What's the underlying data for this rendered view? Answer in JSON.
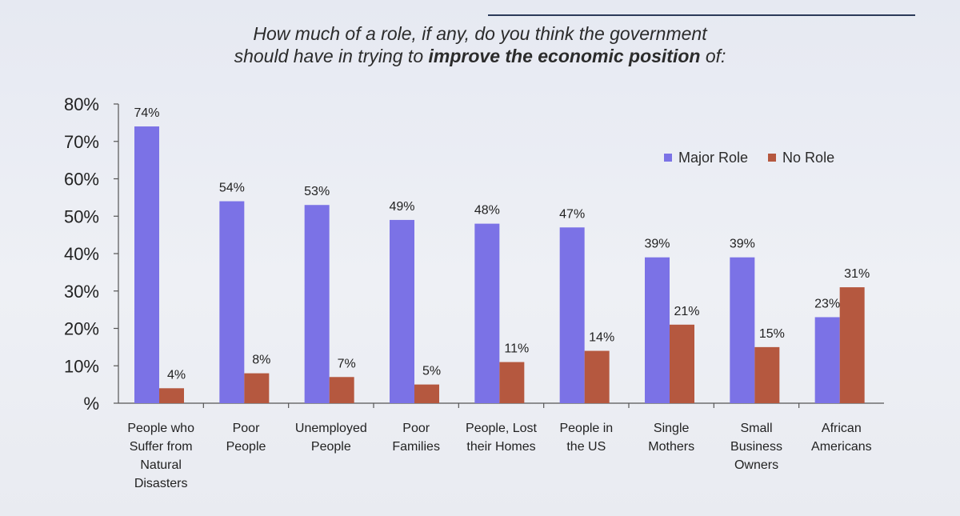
{
  "chart_data": {
    "type": "bar",
    "title_lines": [
      "How much of a role, if any, do you think the government",
      "should have in trying to "
    ],
    "title_bold": "improve the economic position",
    "title_tail": " of:",
    "categories": [
      "People who Suffer from Natural Disasters",
      "Poor People",
      "Unemployed People",
      "Poor Families",
      "People, Lost their Homes",
      "People in the US",
      "Single Mothers",
      "Small Business Owners",
      "African Americans"
    ],
    "category_lines": [
      [
        "People who",
        "Suffer from",
        "Natural",
        "Disasters"
      ],
      [
        "Poor",
        "People"
      ],
      [
        "Unemployed",
        "People"
      ],
      [
        "Poor",
        "Families"
      ],
      [
        "People, Lost",
        "their Homes"
      ],
      [
        "People in",
        "the US"
      ],
      [
        "Single",
        "Mothers"
      ],
      [
        "Small",
        "Business",
        "Owners"
      ],
      [
        "African",
        "Americans"
      ]
    ],
    "series": [
      {
        "name": "Major Role",
        "color": "#7b72e6",
        "values": [
          74,
          54,
          53,
          49,
          48,
          47,
          39,
          39,
          23
        ]
      },
      {
        "name": "No Role",
        "color": "#b5583f",
        "values": [
          4,
          8,
          7,
          5,
          11,
          14,
          21,
          15,
          31
        ]
      }
    ],
    "ylim": [
      0,
      80
    ],
    "yticks": [
      0,
      10,
      20,
      30,
      40,
      50,
      60,
      70,
      80
    ],
    "ytick_labels": [
      "%",
      "10%",
      "20%",
      "30%",
      "40%",
      "50%",
      "60%",
      "70%",
      "80%"
    ],
    "legend_position": "top-right"
  }
}
